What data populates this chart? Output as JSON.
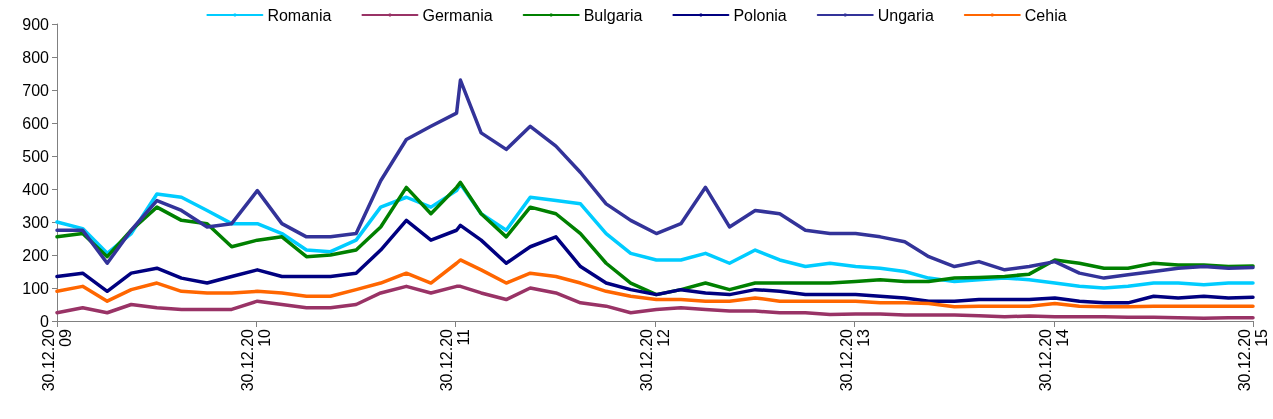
{
  "chart_data": {
    "type": "line",
    "legend": "top",
    "grid": false,
    "marker": "none",
    "line_style": "solid",
    "x": [
      "2009-12-30",
      "2010-02-15",
      "2010-04-01",
      "2010-05-15",
      "2010-07-01",
      "2010-08-15",
      "2010-10-01",
      "2010-11-15",
      "2011-01-01",
      "2011-02-15",
      "2011-04-01",
      "2011-05-15",
      "2011-07-01",
      "2011-08-15",
      "2011-10-01",
      "2011-11-15",
      "2012-01-01",
      "2012-01-08",
      "2012-02-15",
      "2012-04-01",
      "2012-05-15",
      "2012-07-01",
      "2012-08-15",
      "2012-10-01",
      "2012-11-15",
      "2013-01-01",
      "2013-02-15",
      "2013-04-01",
      "2013-05-15",
      "2013-07-01",
      "2013-08-15",
      "2013-10-01",
      "2013-11-15",
      "2014-01-01",
      "2014-02-15",
      "2014-04-01",
      "2014-05-15",
      "2014-07-01",
      "2014-08-15",
      "2014-10-01",
      "2014-11-15",
      "2015-01-01",
      "2015-02-15",
      "2015-04-01",
      "2015-05-15",
      "2015-07-01",
      "2015-08-15",
      "2015-10-01",
      "2015-11-15",
      "2015-12-30"
    ],
    "series": [
      {
        "name": "Romania",
        "color": "#00ccff",
        "values": [
          300,
          280,
          205,
          265,
          385,
          375,
          335,
          295,
          295,
          265,
          215,
          210,
          245,
          345,
          375,
          345,
          395,
          415,
          325,
          275,
          375,
          365,
          355,
          265,
          205,
          185,
          185,
          205,
          175,
          215,
          185,
          165,
          175,
          165,
          160,
          150,
          130,
          120,
          125,
          130,
          125,
          115,
          105,
          100,
          105,
          115,
          115,
          110,
          115,
          115
        ]
      },
      {
        "name": "Germania",
        "color": "#993366",
        "values": [
          25,
          40,
          25,
          50,
          40,
          35,
          35,
          35,
          60,
          50,
          40,
          40,
          50,
          85,
          105,
          85,
          105,
          105,
          85,
          65,
          100,
          85,
          55,
          45,
          25,
          35,
          40,
          35,
          30,
          30,
          25,
          25,
          20,
          21,
          21,
          18,
          18,
          18,
          16,
          13,
          15,
          13,
          13,
          13,
          11,
          11,
          10,
          8,
          10,
          10
        ]
      },
      {
        "name": "Bulgaria",
        "color": "#008000",
        "values": [
          255,
          265,
          195,
          275,
          345,
          305,
          295,
          225,
          245,
          255,
          195,
          200,
          215,
          285,
          405,
          325,
          405,
          420,
          325,
          255,
          345,
          325,
          265,
          175,
          115,
          80,
          95,
          115,
          95,
          115,
          115,
          115,
          115,
          120,
          125,
          120,
          120,
          130,
          132,
          135,
          142,
          185,
          175,
          160,
          160,
          175,
          170,
          170,
          165,
          167
        ]
      },
      {
        "name": "Polonia",
        "color": "#000080",
        "values": [
          135,
          145,
          90,
          145,
          160,
          130,
          115,
          135,
          155,
          135,
          135,
          135,
          145,
          215,
          305,
          245,
          275,
          290,
          245,
          175,
          225,
          255,
          165,
          115,
          95,
          80,
          95,
          85,
          80,
          95,
          90,
          80,
          80,
          80,
          75,
          70,
          60,
          60,
          65,
          65,
          65,
          70,
          60,
          55,
          55,
          75,
          70,
          75,
          70,
          72
        ]
      },
      {
        "name": "Ungaria",
        "color": "#333399",
        "values": [
          275,
          275,
          175,
          275,
          365,
          335,
          285,
          295,
          395,
          295,
          255,
          255,
          265,
          425,
          550,
          590,
          630,
          730,
          570,
          520,
          590,
          530,
          450,
          355,
          305,
          265,
          295,
          405,
          285,
          335,
          325,
          275,
          265,
          265,
          255,
          240,
          195,
          165,
          180,
          155,
          165,
          180,
          145,
          130,
          140,
          150,
          160,
          165,
          160,
          162
        ]
      },
      {
        "name": "Cehia",
        "color": "#ff6600",
        "values": [
          90,
          105,
          60,
          95,
          115,
          90,
          85,
          85,
          90,
          85,
          75,
          75,
          95,
          115,
          145,
          115,
          175,
          185,
          155,
          115,
          145,
          135,
          115,
          90,
          75,
          65,
          65,
          60,
          60,
          70,
          60,
          60,
          60,
          60,
          55,
          55,
          53,
          43,
          45,
          45,
          45,
          53,
          45,
          43,
          43,
          45,
          45,
          45,
          45,
          45
        ]
      }
    ],
    "xlim": [
      "2009-12-30",
      "2015-12-30"
    ],
    "xticks": [
      {
        "value": "2009-12-30",
        "label": "30.12.20\n09"
      },
      {
        "value": "2010-12-30",
        "label": "30.12.20\n10"
      },
      {
        "value": "2011-12-30",
        "label": "30.12.20\n11"
      },
      {
        "value": "2012-12-30",
        "label": "30.12.20\n12"
      },
      {
        "value": "2013-12-30",
        "label": "30.12.20\n13"
      },
      {
        "value": "2014-12-30",
        "label": "30.12.20\n14"
      },
      {
        "value": "2015-12-30",
        "label": "30.12.20\n15"
      }
    ],
    "ylim": [
      0,
      900
    ],
    "yticks": [
      0,
      100,
      200,
      300,
      400,
      500,
      600,
      700,
      800,
      900
    ]
  }
}
